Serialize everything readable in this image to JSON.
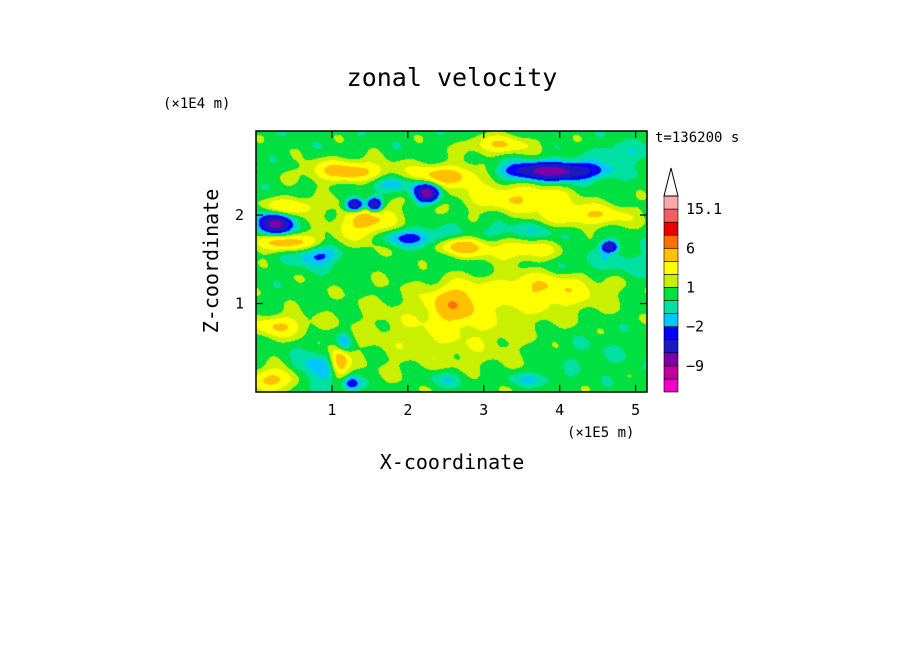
{
  "chart_data": {
    "type": "heatmap",
    "title": "zonal velocity",
    "xlabel": "X-coordinate",
    "ylabel": "Z-coordinate",
    "x_unit": "(×1E5 m)",
    "y_unit": "(×1E4 m)",
    "time_label": "t=136200 s",
    "xlim": [
      0,
      5.15
    ],
    "ylim": [
      0,
      2.95
    ],
    "x_ticks": [
      1,
      2,
      3,
      4,
      5
    ],
    "y_ticks": [
      1,
      2
    ],
    "colorbar": {
      "levels": [
        -15,
        -12,
        -9,
        -6,
        -3.5,
        -2,
        -1,
        0,
        1,
        2,
        3.5,
        6,
        9,
        12,
        15.1
      ],
      "colors": [
        "#f000c8",
        "#c0009c",
        "#7a00a8",
        "#1a1ac0",
        "#0000ff",
        "#00c8ff",
        "#00e0a0",
        "#00e040",
        "#c8f000",
        "#ffff00",
        "#ffc000",
        "#ff7000",
        "#e80000",
        "#f06060",
        "#f8a8a8"
      ],
      "labels": [
        {
          "value": 15.1,
          "text": "15.1"
        },
        {
          "value": 6,
          "text": "6"
        },
        {
          "value": 1,
          "text": "1"
        },
        {
          "value": -2,
          "text": "−2"
        },
        {
          "value": -9,
          "text": "−9"
        }
      ],
      "extend": "max"
    },
    "field": {
      "background_value": 0.5,
      "features": [
        {
          "x": 0.25,
          "z": 0.15,
          "rx": 0.35,
          "rz": 0.12,
          "v": 3.5
        },
        {
          "x": 0.8,
          "z": 0.25,
          "rx": 0.3,
          "rz": 0.2,
          "v": -2.5
        },
        {
          "x": 1.1,
          "z": 0.35,
          "rx": 0.12,
          "rz": 0.18,
          "v": 5
        },
        {
          "x": 1.25,
          "z": 0.1,
          "rx": 0.12,
          "rz": 0.08,
          "v": -4
        },
        {
          "x": 1.15,
          "z": 0.55,
          "rx": 0.1,
          "rz": 0.12,
          "v": -3
        },
        {
          "x": 0.3,
          "z": 0.75,
          "rx": 0.35,
          "rz": 0.12,
          "v": 3
        },
        {
          "x": 2.6,
          "z": 0.7,
          "rx": 1.3,
          "rz": 0.5,
          "v": 1.5
        },
        {
          "x": 2.5,
          "z": 0.15,
          "rx": 0.3,
          "rz": 0.1,
          "v": -1.5
        },
        {
          "x": 3.6,
          "z": 0.15,
          "rx": 0.4,
          "rz": 0.08,
          "v": -1.5
        },
        {
          "x": 2.6,
          "z": 1.0,
          "rx": 0.3,
          "rz": 0.2,
          "v": 4
        },
        {
          "x": 4.2,
          "z": 0.45,
          "rx": 0.9,
          "rz": 0.25,
          "v": -0.6
        },
        {
          "x": 3.8,
          "z": 1.2,
          "rx": 0.8,
          "rz": 0.25,
          "v": 3
        },
        {
          "x": 4.0,
          "z": 1.45,
          "rx": 1.2,
          "rz": 0.18,
          "v": -1.8
        },
        {
          "x": 4.65,
          "z": 1.65,
          "rx": 0.1,
          "rz": 0.06,
          "v": -6
        },
        {
          "x": 3.5,
          "z": 1.6,
          "rx": 0.6,
          "rz": 0.15,
          "v": 3
        },
        {
          "x": 0.25,
          "z": 1.9,
          "rx": 0.2,
          "rz": 0.12,
          "v": -8
        },
        {
          "x": 0.4,
          "z": 1.7,
          "rx": 0.45,
          "rz": 0.1,
          "v": 4
        },
        {
          "x": 0.45,
          "z": 2.1,
          "rx": 0.35,
          "rz": 0.1,
          "v": 3
        },
        {
          "x": 0.8,
          "z": 1.55,
          "rx": 0.3,
          "rz": 0.12,
          "v": -3
        },
        {
          "x": 1.45,
          "z": 1.95,
          "rx": 0.35,
          "rz": 0.25,
          "v": 4
        },
        {
          "x": 1.3,
          "z": 2.12,
          "rx": 0.12,
          "rz": 0.08,
          "v": -8
        },
        {
          "x": 1.55,
          "z": 2.12,
          "rx": 0.1,
          "rz": 0.08,
          "v": -8
        },
        {
          "x": 2.25,
          "z": 2.25,
          "rx": 0.15,
          "rz": 0.1,
          "v": -8
        },
        {
          "x": 2.0,
          "z": 1.75,
          "rx": 0.5,
          "rz": 0.1,
          "v": -3
        },
        {
          "x": 2.7,
          "z": 1.65,
          "rx": 0.3,
          "rz": 0.1,
          "v": 4
        },
        {
          "x": 1.2,
          "z": 2.5,
          "rx": 0.5,
          "rz": 0.12,
          "v": 4
        },
        {
          "x": 2.5,
          "z": 2.45,
          "rx": 0.5,
          "rz": 0.12,
          "v": 4
        },
        {
          "x": 1.8,
          "z": 2.35,
          "rx": 0.4,
          "rz": 0.1,
          "v": -2.5
        },
        {
          "x": 3.4,
          "z": 2.2,
          "rx": 0.7,
          "rz": 0.15,
          "v": 3
        },
        {
          "x": 3.9,
          "z": 2.5,
          "rx": 0.6,
          "rz": 0.1,
          "v": -8
        },
        {
          "x": 4.35,
          "z": 2.0,
          "rx": 0.6,
          "rz": 0.12,
          "v": 3
        },
        {
          "x": 3.5,
          "z": 1.8,
          "rx": 0.6,
          "rz": 0.12,
          "v": -1.5
        },
        {
          "x": 4.8,
          "z": 2.7,
          "rx": 0.35,
          "rz": 0.12,
          "v": -1.5
        },
        {
          "x": 3.2,
          "z": 2.8,
          "rx": 0.4,
          "rz": 0.1,
          "v": 3
        }
      ]
    }
  }
}
